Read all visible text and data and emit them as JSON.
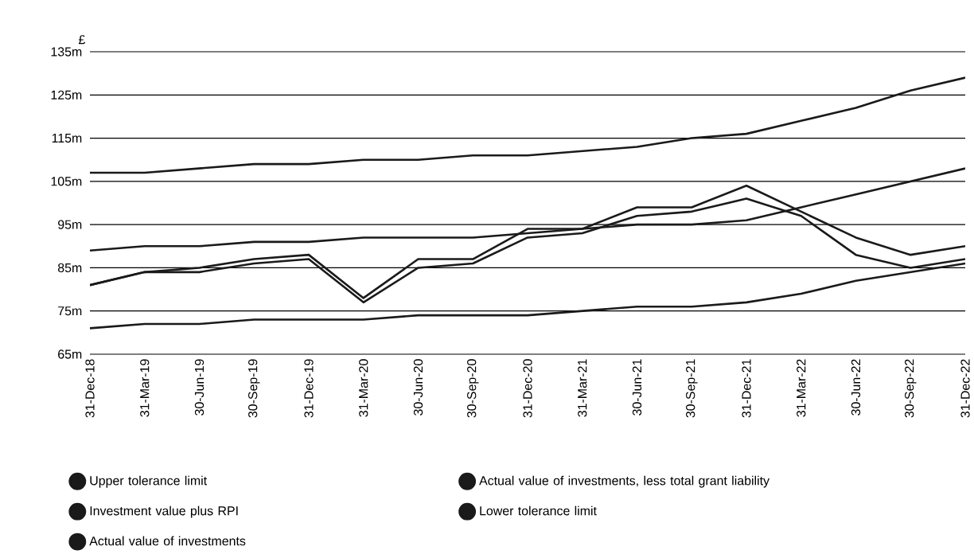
{
  "chart_data": {
    "type": "line",
    "ylabel": "£",
    "categories": [
      "31-Dec-18",
      "31-Mar-19",
      "30-Jun-19",
      "30-Sep-19",
      "31-Dec-19",
      "31-Mar-20",
      "30-Jun-20",
      "30-Sep-20",
      "31-Dec-20",
      "31-Mar-21",
      "30-Jun-21",
      "30-Sep-21",
      "31-Dec-21",
      "31-Mar-22",
      "30-Jun-22",
      "30-Sep-22",
      "31-Dec-22"
    ],
    "series": [
      {
        "name": "Upper tolerance limit",
        "color": "#1a1a1a",
        "values": [
          107,
          107,
          108,
          109,
          109,
          110,
          110,
          111,
          111,
          112,
          113,
          115,
          116,
          119,
          122,
          126,
          129
        ]
      },
      {
        "name": "Investment value plus RPI",
        "color": "#1a1a1a",
        "values": [
          89,
          90,
          90,
          91,
          91,
          92,
          92,
          92,
          93,
          94,
          95,
          95,
          96,
          99,
          102,
          105,
          108
        ]
      },
      {
        "name": "Actual value of investments",
        "color": "#1a1a1a",
        "values": [
          81,
          84,
          85,
          87,
          88,
          78,
          87,
          87,
          94,
          94,
          99,
          99,
          104,
          98,
          92,
          88,
          90
        ]
      },
      {
        "name": "Actual value of investments, less total grant liability",
        "color": "#1a1a1a",
        "values": [
          81,
          84,
          84,
          86,
          87,
          77,
          85,
          86,
          92,
          93,
          97,
          98,
          101,
          97,
          88,
          85,
          87
        ]
      },
      {
        "name": "Lower tolerance limit",
        "color": "#1a1a1a",
        "values": [
          71,
          72,
          72,
          73,
          73,
          73,
          74,
          74,
          74,
          75,
          76,
          76,
          77,
          79,
          82,
          84,
          86
        ]
      }
    ],
    "ylim": [
      65,
      135
    ],
    "yticks": [
      {
        "value": 65,
        "label": "65m"
      },
      {
        "value": 75,
        "label": "75m"
      },
      {
        "value": 85,
        "label": "85m"
      },
      {
        "value": 95,
        "label": "95m"
      },
      {
        "value": 105,
        "label": "105m"
      },
      {
        "value": 115,
        "label": "115m"
      },
      {
        "value": 125,
        "label": "125m"
      },
      {
        "value": 135,
        "label": "135m"
      }
    ],
    "grid": "y",
    "legend": "bottom",
    "marker": "none",
    "line_style": "solid"
  }
}
